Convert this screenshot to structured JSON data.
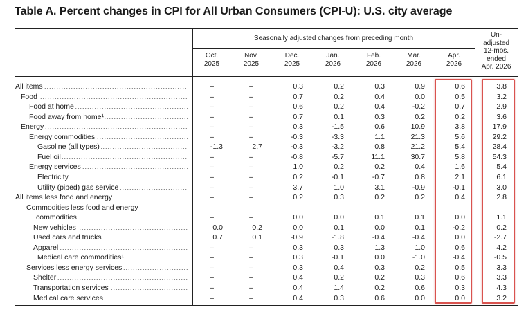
{
  "title": "Table A. Percent changes in CPI for All Urban Consumers (CPI-U): U.S. city average",
  "header": {
    "span_label": "Seasonally adjusted changes from preceding month",
    "columns": [
      {
        "l1": "Oct.",
        "l2": "2025"
      },
      {
        "l1": "Nov.",
        "l2": "2025"
      },
      {
        "l1": "Dec.",
        "l2": "2025"
      },
      {
        "l1": "Jan.",
        "l2": "2026"
      },
      {
        "l1": "Feb.",
        "l2": "2026"
      },
      {
        "l1": "Mar.",
        "l2": "2026"
      },
      {
        "l1": "Apr.",
        "l2": "2026"
      }
    ],
    "unadjusted": [
      "Un-",
      "adjusted",
      "12-mos.",
      "ended",
      "Apr. 2026"
    ]
  },
  "rows": [
    {
      "label": "All items",
      "values": [
        "–",
        "–",
        "0.3",
        "0.2",
        "0.3",
        "0.9",
        "0.6",
        "3.8"
      ]
    },
    {
      "label": "Food",
      "values": [
        "–",
        "–",
        "0.7",
        "0.2",
        "0.4",
        "0.0",
        "0.5",
        "3.2"
      ]
    },
    {
      "label": "Food at home",
      "values": [
        "–",
        "–",
        "0.6",
        "0.2",
        "0.4",
        "-0.2",
        "0.7",
        "2.9"
      ]
    },
    {
      "label": "Food away from home¹",
      "values": [
        "–",
        "–",
        "0.7",
        "0.1",
        "0.3",
        "0.2",
        "0.2",
        "3.6"
      ]
    },
    {
      "label": "Energy",
      "values": [
        "–",
        "–",
        "0.3",
        "-1.5",
        "0.6",
        "10.9",
        "3.8",
        "17.9"
      ]
    },
    {
      "label": "Energy commodities",
      "values": [
        "–",
        "–",
        "-0.3",
        "-3.3",
        "1.1",
        "21.3",
        "5.6",
        "29.2"
      ]
    },
    {
      "label": "Gasoline (all types)",
      "values": [
        "-1.3",
        "2.7",
        "-0.3",
        "-3.2",
        "0.8",
        "21.2",
        "5.4",
        "28.4"
      ]
    },
    {
      "label": "Fuel oil",
      "values": [
        "–",
        "–",
        "-0.8",
        "-5.7",
        "11.1",
        "30.7",
        "5.8",
        "54.3"
      ]
    },
    {
      "label": "Energy services",
      "values": [
        "–",
        "–",
        "1.0",
        "0.2",
        "0.2",
        "0.4",
        "1.6",
        "5.4"
      ]
    },
    {
      "label": "Electricity",
      "values": [
        "–",
        "–",
        "0.2",
        "-0.1",
        "-0.7",
        "0.8",
        "2.1",
        "6.1"
      ]
    },
    {
      "label": "Utility (piped) gas service",
      "values": [
        "–",
        "–",
        "3.7",
        "1.0",
        "3.1",
        "-0.9",
        "-0.1",
        "3.0"
      ]
    },
    {
      "label": "All items less food and energy",
      "values": [
        "–",
        "–",
        "0.2",
        "0.3",
        "0.2",
        "0.2",
        "0.4",
        "2.8"
      ]
    },
    {
      "label": "Commodities less food and energy",
      "values": []
    },
    {
      "label": "commodities",
      "values": [
        "–",
        "–",
        "0.0",
        "0.0",
        "0.1",
        "0.1",
        "0.0",
        "1.1"
      ]
    },
    {
      "label": "New vehicles",
      "values": [
        "0.0",
        "0.2",
        "0.0",
        "0.1",
        "0.0",
        "0.1",
        "-0.2",
        "0.2"
      ]
    },
    {
      "label": "Used cars and trucks",
      "values": [
        "0.7",
        "0.1",
        "-0.9",
        "-1.8",
        "-0.4",
        "-0.4",
        "0.0",
        "-2.7"
      ]
    },
    {
      "label": "Apparel",
      "values": [
        "–",
        "–",
        "0.3",
        "0.3",
        "1.3",
        "1.0",
        "0.6",
        "4.2"
      ]
    },
    {
      "label": "Medical care commodities¹",
      "values": [
        "–",
        "–",
        "0.3",
        "-0.1",
        "0.0",
        "-1.0",
        "-0.4",
        "-0.5"
      ]
    },
    {
      "label": "Services less energy services",
      "values": [
        "–",
        "–",
        "0.3",
        "0.4",
        "0.3",
        "0.2",
        "0.5",
        "3.3"
      ]
    },
    {
      "label": "Shelter",
      "values": [
        "–",
        "–",
        "0.4",
        "0.2",
        "0.2",
        "0.3",
        "0.6",
        "3.3"
      ]
    },
    {
      "label": "Transportation services",
      "values": [
        "–",
        "–",
        "0.4",
        "1.4",
        "0.2",
        "0.6",
        "0.3",
        "4.3"
      ]
    },
    {
      "label": "Medical care services",
      "values": [
        "–",
        "–",
        "0.4",
        "0.3",
        "0.6",
        "0.0",
        "0.0",
        "3.2"
      ]
    }
  ],
  "highlight_color": "#d9534f"
}
